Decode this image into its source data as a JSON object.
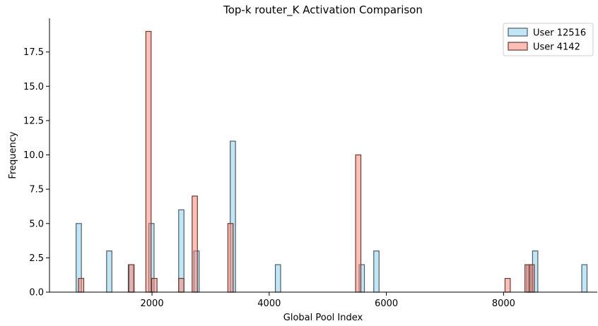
{
  "chart_data": {
    "type": "bar",
    "title": "Top-k router_K Activation Comparison",
    "xlabel": "Global Pool Index",
    "ylabel": "Frequency",
    "xlim": [
      250,
      9600
    ],
    "ylim": [
      0,
      19.95
    ],
    "x_ticks": [
      2000,
      4000,
      6000,
      8000
    ],
    "y_ticks": [
      0.0,
      2.5,
      5.0,
      7.5,
      10.0,
      12.5,
      15.0,
      17.5
    ],
    "bin_width": 90,
    "legend_position": "top-right",
    "grid": false,
    "series": [
      {
        "name": "User 12516",
        "color": "#87CEEB",
        "edge_color": "#4a5f6a",
        "bins": [
          {
            "x": 750,
            "y": 5
          },
          {
            "x": 1270,
            "y": 3
          },
          {
            "x": 1640,
            "y": 2
          },
          {
            "x": 1990,
            "y": 5
          },
          {
            "x": 2500,
            "y": 6
          },
          {
            "x": 2760,
            "y": 3
          },
          {
            "x": 3380,
            "y": 11
          },
          {
            "x": 4150,
            "y": 2
          },
          {
            "x": 5580,
            "y": 2
          },
          {
            "x": 5830,
            "y": 3
          },
          {
            "x": 8440,
            "y": 2
          },
          {
            "x": 8540,
            "y": 3
          },
          {
            "x": 9380,
            "y": 2
          }
        ]
      },
      {
        "name": "User 4142",
        "color": "#FA8072",
        "edge_color": "#6a3a34",
        "bins": [
          {
            "x": 790,
            "y": 1
          },
          {
            "x": 1650,
            "y": 2
          },
          {
            "x": 1940,
            "y": 19
          },
          {
            "x": 2040,
            "y": 1
          },
          {
            "x": 2500,
            "y": 1
          },
          {
            "x": 2730,
            "y": 7
          },
          {
            "x": 3340,
            "y": 5
          },
          {
            "x": 5520,
            "y": 10
          },
          {
            "x": 8070,
            "y": 1
          },
          {
            "x": 8410,
            "y": 2
          },
          {
            "x": 8480,
            "y": 2
          }
        ]
      }
    ]
  }
}
